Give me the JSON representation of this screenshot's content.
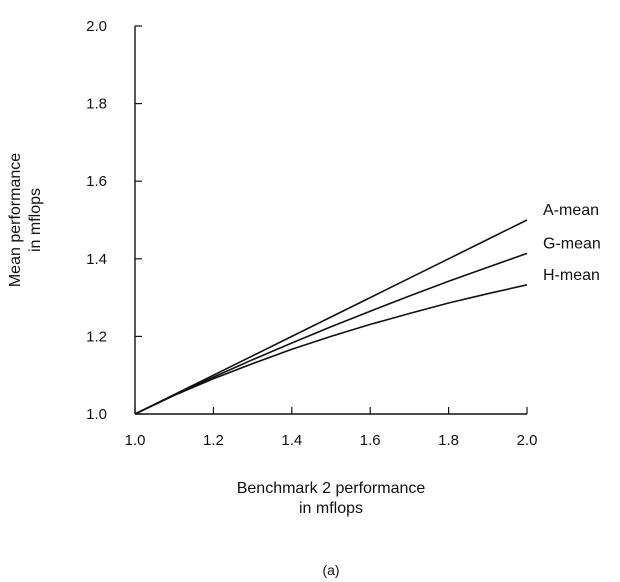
{
  "chart_data": {
    "type": "line",
    "xlabel_lines": [
      "Benchmark 2 performance",
      "in mflops"
    ],
    "ylabel_lines": [
      "Mean performance",
      "in mflops"
    ],
    "xlim": [
      1.0,
      2.0
    ],
    "ylim": [
      1.0,
      2.0
    ],
    "x_ticks": [
      "1.0",
      "1.2",
      "1.4",
      "1.6",
      "1.8",
      "2.0"
    ],
    "y_ticks": [
      "1.0",
      "1.2",
      "1.4",
      "1.6",
      "1.8",
      "2.0"
    ],
    "grid": false,
    "caption": "(a)",
    "series": [
      {
        "name": "A-mean",
        "x": [
          1.0,
          1.1,
          1.2,
          1.3,
          1.4,
          1.5,
          1.6,
          1.7,
          1.8,
          1.9,
          2.0
        ],
        "y": [
          1.0,
          1.05,
          1.1,
          1.15,
          1.2,
          1.25,
          1.3,
          1.35,
          1.4,
          1.45,
          1.5
        ]
      },
      {
        "name": "G-mean",
        "x": [
          1.0,
          1.1,
          1.2,
          1.3,
          1.4,
          1.5,
          1.6,
          1.7,
          1.8,
          1.9,
          2.0
        ],
        "y": [
          1.0,
          1.049,
          1.095,
          1.14,
          1.183,
          1.225,
          1.265,
          1.304,
          1.342,
          1.378,
          1.414
        ]
      },
      {
        "name": "H-mean",
        "x": [
          1.0,
          1.1,
          1.2,
          1.3,
          1.4,
          1.5,
          1.6,
          1.7,
          1.8,
          1.9,
          2.0
        ],
        "y": [
          1.0,
          1.048,
          1.091,
          1.13,
          1.167,
          1.2,
          1.231,
          1.259,
          1.286,
          1.31,
          1.333
        ]
      }
    ]
  }
}
